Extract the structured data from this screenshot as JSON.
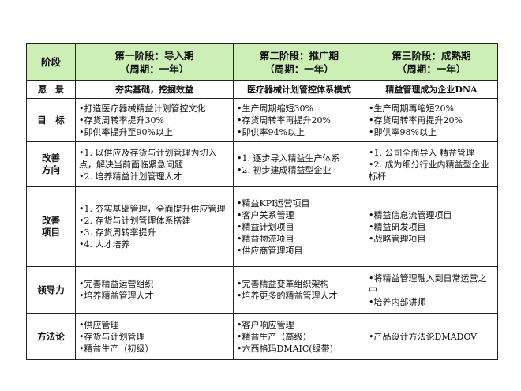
{
  "header": {
    "row_label": "阶段",
    "phases": [
      {
        "title": "第一阶段：导入期",
        "period": "（周期：一年）"
      },
      {
        "title": "第二阶段：推广期",
        "period": "（周期：一年）"
      },
      {
        "title": "第三阶段：成熟期",
        "period": "（周期：一年）"
      }
    ]
  },
  "vision": {
    "label": "愿　景",
    "cells": [
      "夯实基础，挖掘效益",
      "医疗器械计划管控体系模式",
      "精益管理成为企业DNA"
    ]
  },
  "rows": [
    {
      "label": "目　标",
      "cells": [
        [
          "打造医疗器械精益计划管控文化",
          "存货周转率提升30%",
          "即供率提升至90%以上"
        ],
        [
          "生产周期缩短30%",
          "存货周转率再提升20%",
          "即供率94%以上"
        ],
        [
          "生产周期再缩短20%",
          "存货周转率再提升20%",
          "即供率98%以上"
        ]
      ]
    },
    {
      "label": "改善方向",
      "cells": [
        [
          "1. 以供应及存货与计划管理为切入点，解决当前面临紧急问题",
          "2. 培养精益计划管理人才"
        ],
        [
          "1. 逐步导入精益生产体系",
          "2. 初步建成精益型企业"
        ],
        [
          "1. 公司全面导入 精益管理",
          "2. 成为细分行业内精益型企业标杆"
        ]
      ]
    },
    {
      "label": "改善项目",
      "cells": [
        [
          "1. 夯实基础管理，全面提升供应管理",
          "2. 存货与计划管理体系搭建",
          "3. 存货周转率提升",
          "4. 人才培养"
        ],
        [
          "精益KPI运营项目",
          "客户关系管理",
          "精益计划项目",
          "精益物流项目",
          "供应商管理项目"
        ],
        [
          "精益信息流管理项目",
          "精益研发项目",
          "战略管理项目"
        ]
      ]
    },
    {
      "label": "领导力",
      "cells": [
        [
          "完善精益运营组织",
          "培养精益管理人才"
        ],
        [
          "完善精益变革组织架构",
          "培养更多的精益管理人才"
        ],
        [
          "将精益管理融入到日常运营之中",
          "培养内部讲师"
        ]
      ]
    },
    {
      "label": "方法论",
      "cells": [
        [
          "供应管理",
          "存货与计划管理",
          "精益生产（初级）"
        ],
        [
          "客户响应管理",
          "精益生产（高级）",
          "六西格玛DMAIC(绿带)"
        ],
        [
          "产品设计方法论DMADOV"
        ]
      ]
    }
  ]
}
